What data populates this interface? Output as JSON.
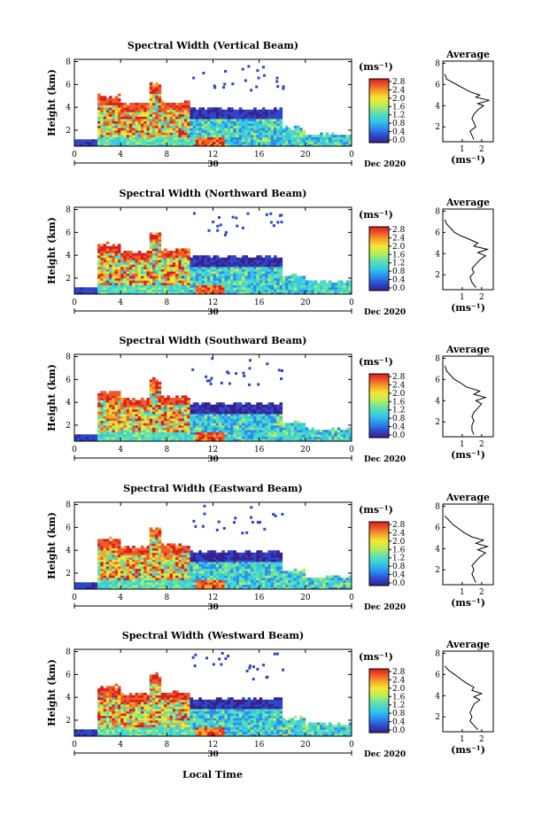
{
  "chart_data": {
    "type": "heatmap",
    "x_axis": {
      "label": "Local Time",
      "ticks": [
        "0",
        "4",
        "8",
        "12",
        "16",
        "20",
        "0"
      ],
      "range": [
        0,
        24
      ],
      "date_labels": [
        "30",
        "Dec 2020"
      ]
    },
    "y_axis": {
      "label": "Height (km)",
      "ticks": [
        "2",
        "4",
        "6",
        "8"
      ],
      "range": [
        0.6,
        8.2
      ]
    },
    "colorbar": {
      "unit": "(ms⁻¹)",
      "ticks": [
        "2.8",
        "2.4",
        "2.0",
        "1.6",
        "1.2",
        "0.8",
        "0.4",
        "0.0"
      ],
      "range": [
        0.0,
        2.8
      ],
      "colors": [
        "#3a1f8c",
        "#2e46c8",
        "#2a8cf0",
        "#35c9e6",
        "#5ee0b0",
        "#b8ee58",
        "#f5e632",
        "#f7a52a",
        "#ee5a28",
        "#d81e1e"
      ]
    },
    "panels": [
      {
        "beam": "Vertical",
        "title": "Spectral Width (Vertical Beam)",
        "average": {
          "title": "Average",
          "xlabel": "(ms⁻¹)",
          "xticks": [
            "1",
            "2"
          ],
          "xrange": [
            0,
            2.6
          ],
          "yticks": [
            "2",
            "4",
            "6",
            "8"
          ],
          "yrange": [
            0.6,
            8.2
          ],
          "profile": [
            [
              1.6,
              0.8
            ],
            [
              1.5,
              1.2
            ],
            [
              1.4,
              1.6
            ],
            [
              1.7,
              2.0
            ],
            [
              1.6,
              2.4
            ],
            [
              1.5,
              2.8
            ],
            [
              1.6,
              3.2
            ],
            [
              1.8,
              3.6
            ],
            [
              2.1,
              4.0
            ],
            [
              1.8,
              4.2
            ],
            [
              2.4,
              4.5
            ],
            [
              1.7,
              4.8
            ],
            [
              1.9,
              5.0
            ],
            [
              1.4,
              5.3
            ],
            [
              1.1,
              5.6
            ],
            [
              0.8,
              5.9
            ],
            [
              0.5,
              6.2
            ],
            [
              0.2,
              6.5
            ],
            [
              0.1,
              7.0
            ]
          ]
        }
      },
      {
        "beam": "Northward",
        "title": "Spectral Width (Northward Beam)",
        "average": {
          "title": "Average",
          "xlabel": "(ms⁻¹)",
          "xticks": [
            "1",
            "2"
          ],
          "xrange": [
            0,
            2.6
          ],
          "yticks": [
            "2",
            "4",
            "6",
            "8"
          ],
          "yrange": [
            0.6,
            8.2
          ],
          "profile": [
            [
              1.7,
              0.8
            ],
            [
              1.5,
              1.3
            ],
            [
              1.4,
              1.8
            ],
            [
              1.6,
              2.2
            ],
            [
              1.5,
              2.6
            ],
            [
              1.7,
              3.0
            ],
            [
              1.9,
              3.4
            ],
            [
              2.2,
              3.8
            ],
            [
              1.8,
              4.1
            ],
            [
              2.3,
              4.4
            ],
            [
              1.6,
              4.7
            ],
            [
              1.8,
              5.0
            ],
            [
              1.3,
              5.4
            ],
            [
              0.9,
              5.7
            ],
            [
              0.6,
              6.0
            ],
            [
              0.4,
              6.4
            ],
            [
              0.2,
              6.8
            ],
            [
              0.1,
              7.2
            ]
          ]
        }
      },
      {
        "beam": "Southward",
        "title": "Spectral Width (Southward Beam)",
        "average": {
          "title": "Average",
          "xlabel": "(ms⁻¹)",
          "xticks": [
            "1",
            "2"
          ],
          "xrange": [
            0,
            2.6
          ],
          "yticks": [
            "2",
            "4",
            "6",
            "8"
          ],
          "yrange": [
            0.6,
            8.2
          ],
          "profile": [
            [
              1.6,
              0.8
            ],
            [
              1.5,
              1.2
            ],
            [
              1.5,
              1.7
            ],
            [
              1.6,
              2.1
            ],
            [
              1.5,
              2.5
            ],
            [
              1.6,
              2.9
            ],
            [
              1.8,
              3.3
            ],
            [
              2.0,
              3.7
            ],
            [
              1.7,
              4.0
            ],
            [
              2.2,
              4.3
            ],
            [
              1.6,
              4.6
            ],
            [
              1.9,
              4.9
            ],
            [
              1.2,
              5.3
            ],
            [
              0.9,
              5.7
            ],
            [
              0.6,
              6.0
            ],
            [
              0.4,
              6.4
            ],
            [
              0.2,
              6.8
            ],
            [
              0.1,
              7.3
            ]
          ]
        }
      },
      {
        "beam": "Eastward",
        "title": "Spectral Width (Eastward Beam)",
        "average": {
          "title": "Average",
          "xlabel": "(ms⁻¹)",
          "xticks": [
            "1",
            "2"
          ],
          "xrange": [
            0,
            2.6
          ],
          "yticks": [
            "2",
            "4",
            "6",
            "8"
          ],
          "yrange": [
            0.6,
            8.2
          ],
          "profile": [
            [
              1.7,
              0.8
            ],
            [
              1.6,
              1.2
            ],
            [
              1.5,
              1.6
            ],
            [
              1.6,
              2.0
            ],
            [
              1.5,
              2.4
            ],
            [
              1.7,
              2.8
            ],
            [
              1.9,
              3.2
            ],
            [
              2.2,
              3.6
            ],
            [
              1.8,
              3.9
            ],
            [
              2.3,
              4.2
            ],
            [
              1.7,
              4.5
            ],
            [
              2.1,
              4.8
            ],
            [
              1.5,
              5.1
            ],
            [
              1.1,
              5.5
            ],
            [
              0.8,
              5.9
            ],
            [
              0.5,
              6.3
            ],
            [
              0.3,
              6.7
            ],
            [
              0.1,
              7.1
            ]
          ]
        }
      },
      {
        "beam": "Westward",
        "title": "Spectral Width (Westward Beam)",
        "average": {
          "title": "Average",
          "xlabel": "(ms⁻¹)",
          "xticks": [
            "1",
            "2"
          ],
          "xrange": [
            0,
            2.6
          ],
          "yticks": [
            "2",
            "4",
            "6",
            "8"
          ],
          "yrange": [
            0.6,
            8.2
          ],
          "profile": [
            [
              1.8,
              0.8
            ],
            [
              1.6,
              1.2
            ],
            [
              1.4,
              1.6
            ],
            [
              1.5,
              2.0
            ],
            [
              1.4,
              2.4
            ],
            [
              1.5,
              2.8
            ],
            [
              1.6,
              3.2
            ],
            [
              1.9,
              3.6
            ],
            [
              1.6,
              3.9
            ],
            [
              2.0,
              4.2
            ],
            [
              1.5,
              4.5
            ],
            [
              1.6,
              4.8
            ],
            [
              1.2,
              5.2
            ],
            [
              0.9,
              5.6
            ],
            [
              0.6,
              6.0
            ],
            [
              0.3,
              6.4
            ],
            [
              0.1,
              6.8
            ]
          ]
        }
      }
    ]
  }
}
